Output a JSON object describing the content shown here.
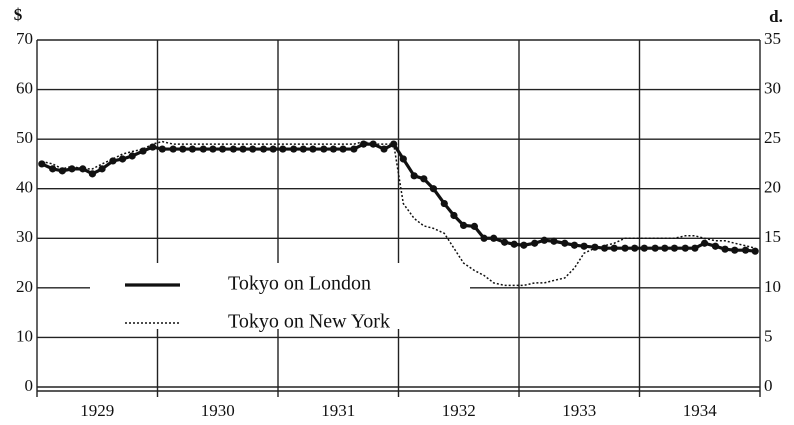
{
  "chart_data": {
    "type": "line",
    "ylabel": "$",
    "y2label": "d.",
    "x": [
      1929.04,
      1929.13,
      1929.21,
      1929.29,
      1929.38,
      1929.46,
      1929.54,
      1929.63,
      1929.71,
      1929.79,
      1929.88,
      1929.96,
      1930.04,
      1930.13,
      1930.21,
      1930.29,
      1930.38,
      1930.46,
      1930.54,
      1930.63,
      1930.71,
      1930.79,
      1930.88,
      1930.96,
      1931.04,
      1931.13,
      1931.21,
      1931.29,
      1931.38,
      1931.46,
      1931.54,
      1931.63,
      1931.71,
      1931.79,
      1931.88,
      1931.96,
      1932.04,
      1932.13,
      1932.21,
      1932.29,
      1932.38,
      1932.46,
      1932.54,
      1932.63,
      1932.71,
      1932.79,
      1932.88,
      1932.96,
      1933.04,
      1933.13,
      1933.21,
      1933.29,
      1933.38,
      1933.46,
      1933.54,
      1933.63,
      1933.71,
      1933.79,
      1933.88,
      1933.96,
      1934.04,
      1934.13,
      1934.21,
      1934.29,
      1934.38,
      1934.46,
      1934.54,
      1934.63,
      1934.71,
      1934.79,
      1934.88,
      1934.96
    ],
    "series": [
      {
        "name": "Tokyo on London",
        "color": "#111",
        "axis": "y2",
        "style": "solid-markers",
        "values": [
          22.5,
          22,
          21.8,
          22,
          22,
          21.5,
          22,
          22.8,
          23,
          23.3,
          23.8,
          24.2,
          24,
          24,
          24,
          24,
          24,
          24,
          24,
          24,
          24,
          24,
          24,
          24,
          24,
          24,
          24,
          24,
          24,
          24,
          24,
          24,
          24.5,
          24.5,
          24,
          24.5,
          23,
          21.3,
          21,
          20,
          18.5,
          17.3,
          16.3,
          16.2,
          15,
          15,
          14.6,
          14.4,
          14.3,
          14.5,
          14.8,
          14.7,
          14.5,
          14.3,
          14.2,
          14.1,
          14,
          14,
          14,
          14,
          14,
          14,
          14,
          14,
          14,
          14,
          14.5,
          14.2,
          13.9,
          13.8,
          13.8,
          13.7
        ]
      },
      {
        "name": "Tokyo on New York",
        "color": "#111",
        "axis": "y",
        "style": "dotted",
        "values": [
          45.5,
          45,
          44,
          44.5,
          44,
          44,
          45,
          46,
          47,
          47.5,
          48,
          49,
          49.5,
          49,
          49,
          49,
          49,
          49,
          49,
          49,
          49,
          49,
          49,
          49,
          49,
          49,
          49,
          49,
          49,
          49,
          49,
          49,
          49.5,
          49,
          49,
          49,
          37,
          34,
          32.5,
          32,
          31,
          28,
          25,
          23.5,
          22.5,
          21,
          20.5,
          20.5,
          20.5,
          21,
          21,
          21.5,
          22,
          24,
          27,
          28,
          28.5,
          29,
          30,
          30,
          30,
          30,
          30,
          30,
          30.5,
          30.5,
          30,
          29.5,
          29.5,
          29,
          28.5,
          28
        ]
      }
    ],
    "xlim": [
      1929,
      1935
    ],
    "xticks": [
      {
        "value": 1929.5,
        "label": "1929"
      },
      {
        "value": 1930.5,
        "label": "1930"
      },
      {
        "value": 1931.5,
        "label": "1931"
      },
      {
        "value": 1932.5,
        "label": "1932"
      },
      {
        "value": 1933.5,
        "label": "1933"
      },
      {
        "value": 1934.5,
        "label": "1934"
      }
    ],
    "xgrid": [
      1930,
      1931,
      1932,
      1933,
      1934
    ],
    "ylim": [
      0,
      70
    ],
    "yticks": [
      0,
      10,
      20,
      30,
      40,
      50,
      60,
      70
    ],
    "y2lim": [
      0,
      35
    ],
    "y2ticks": [
      0,
      5,
      10,
      15,
      20,
      25,
      30,
      35
    ],
    "grid": true,
    "legend": "center-left"
  }
}
